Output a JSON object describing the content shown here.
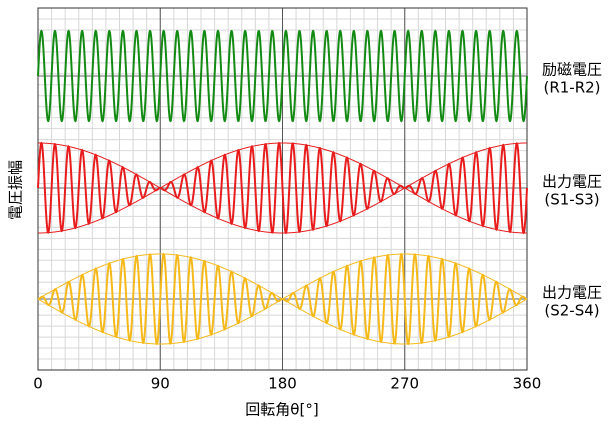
{
  "chart_data": {
    "type": "modulated-wave",
    "xlabel": "回転角θ[°]",
    "ylabel": "電圧振幅",
    "xlim": [
      0,
      360
    ],
    "xticks": [
      0,
      90,
      180,
      270,
      360
    ],
    "grid": true,
    "carrier_cycles": 36,
    "series": [
      {
        "name": "励磁電圧",
        "terminals": "(R1-R2)",
        "color": "#138a13",
        "envelope": "none"
      },
      {
        "name": "出力電圧",
        "terminals": "(S1-S3)",
        "color": "#e81c1c",
        "envelope": "cos"
      },
      {
        "name": "出力電圧",
        "terminals": "(S2-S4)",
        "color": "#f5b91a",
        "envelope": "sin"
      }
    ]
  }
}
